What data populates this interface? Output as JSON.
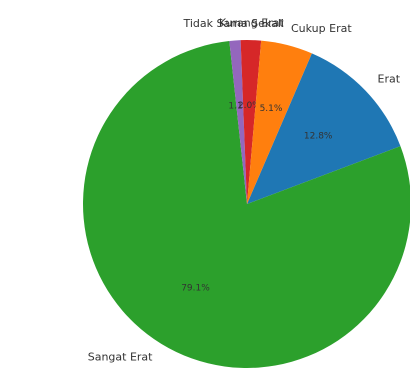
{
  "chart_data": {
    "type": "pie",
    "title": "",
    "categories": [
      "Erat",
      "Sangat Erat",
      "Tidak Sama Sekali",
      "Kurang Erat",
      "Cukup Erat"
    ],
    "values": [
      12.8,
      79.1,
      1.1,
      2.0,
      5.1
    ],
    "value_labels": [
      "12.8%",
      "79.1%",
      "1.1%",
      "2.0%",
      "5.1%"
    ],
    "colors": [
      "#1f77b4",
      "#2ca02c",
      "#9467bd",
      "#d62728",
      "#ff7f0e"
    ],
    "start_angle_deg": 66.7,
    "direction": "clockwise"
  }
}
